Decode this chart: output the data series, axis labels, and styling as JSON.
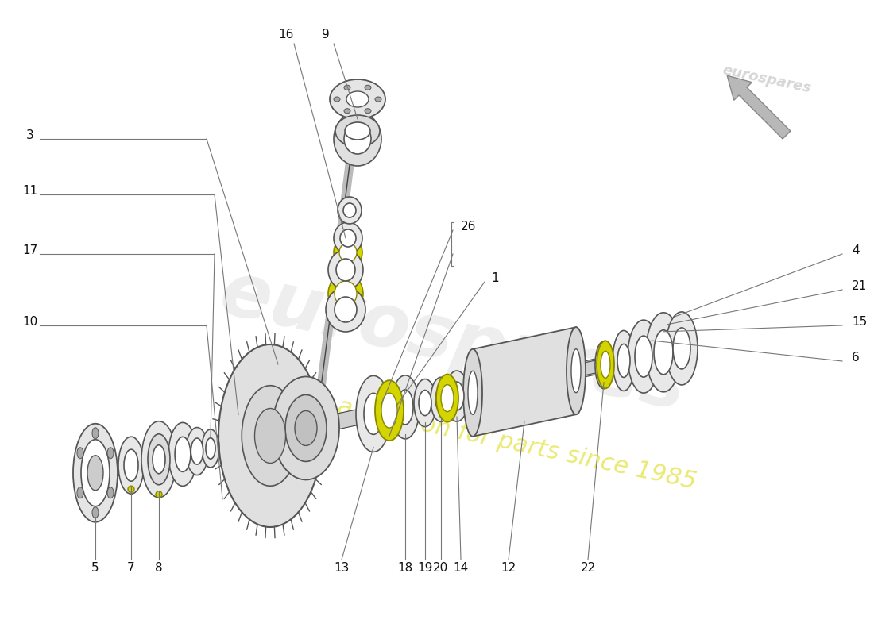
{
  "bg_color": "#ffffff",
  "watermark_text": "eurospares",
  "watermark_slogan": "a passion for parts since 1985",
  "line_color": "#444444",
  "part_fill": "#e8e8e8",
  "part_edge": "#555555",
  "yellow_fill": "#d4d400",
  "yellow_edge": "#888800",
  "shaft_fill": "#d0d0d0",
  "figsize": [
    11.0,
    8.0
  ],
  "dpi": 100
}
